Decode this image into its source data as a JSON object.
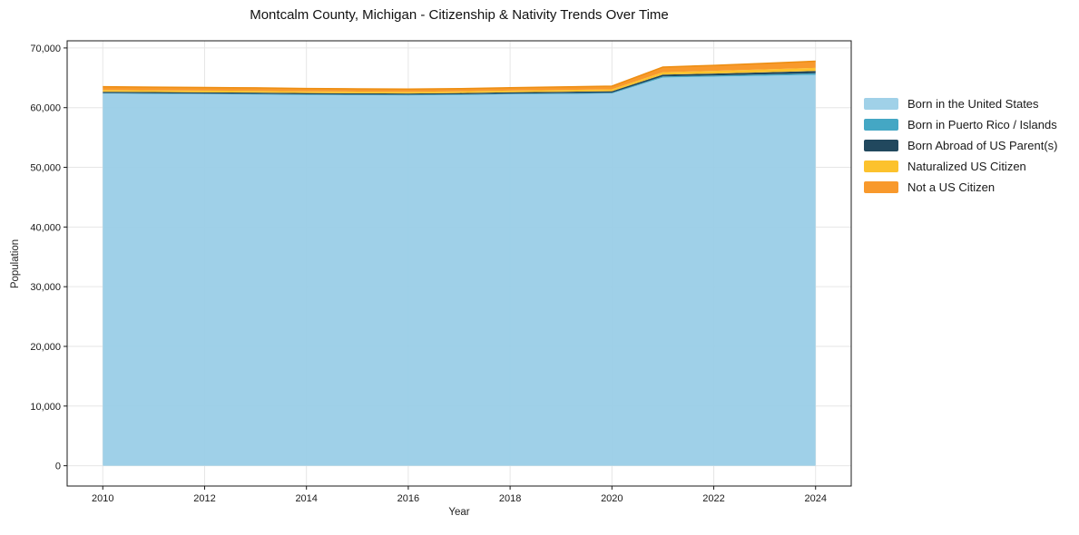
{
  "figure": {
    "background": "#ffffff",
    "spine_color": "#1a1a1a",
    "grid_color": "#e6e6e6",
    "tick_label_color": "#1a1a1a",
    "top_edge_color": "#ed8e12"
  },
  "chart_data": {
    "type": "area",
    "stacked": true,
    "title": "Montcalm County, Michigan - Citizenship & Nativity Trends Over Time",
    "xlabel": "Year",
    "ylabel": "Population",
    "x": [
      2010,
      2011,
      2012,
      2013,
      2014,
      2015,
      2016,
      2017,
      2018,
      2019,
      2020,
      2021,
      2022,
      2023,
      2024
    ],
    "series": [
      {
        "name": "Born in the United States",
        "color": "#98cce6",
        "legend_color": "#a0d1e8",
        "values": [
          62350,
          62300,
          62250,
          62200,
          62120,
          62080,
          62060,
          62120,
          62230,
          62300,
          62380,
          65050,
          65200,
          65350,
          65500
        ]
      },
      {
        "name": "Born in Puerto Rico / Islands",
        "color": "#44a7c4",
        "legend_color": "#44a7c4",
        "values": [
          100,
          100,
          100,
          105,
          110,
          110,
          110,
          115,
          120,
          125,
          130,
          180,
          200,
          230,
          260
        ]
      },
      {
        "name": "Born Abroad of US Parent(s)",
        "color": "#21485e",
        "legend_color": "#21485e",
        "values": [
          210,
          210,
          210,
          215,
          220,
          215,
          210,
          210,
          220,
          230,
          240,
          300,
          320,
          350,
          380
        ]
      },
      {
        "name": "Naturalized US Citizen",
        "color": "#fcc22d",
        "legend_color": "#fcc22d",
        "values": [
          300,
          295,
          295,
          290,
          285,
          280,
          280,
          285,
          295,
          305,
          320,
          420,
          450,
          480,
          520
        ]
      },
      {
        "name": "Not a US Citizen",
        "color": "#f8992c",
        "legend_color": "#f8992c",
        "values": [
          550,
          535,
          520,
          500,
          480,
          460,
          450,
          455,
          475,
          500,
          530,
          850,
          920,
          1000,
          1120
        ]
      }
    ],
    "x_ticks": [
      2010,
      2012,
      2014,
      2016,
      2018,
      2020,
      2022,
      2024
    ],
    "x_tick_labels": [
      "2010",
      "2012",
      "2014",
      "2016",
      "2018",
      "2020",
      "2022",
      "2024"
    ],
    "y_ticks": [
      0,
      10000,
      20000,
      30000,
      40000,
      50000,
      60000,
      70000
    ],
    "y_tick_labels": [
      "0",
      "10,000",
      "20,000",
      "30,000",
      "40,000",
      "50,000",
      "60,000",
      "70,000"
    ],
    "xlim": [
      2009.3,
      2024.7
    ],
    "ylim": [
      -3400,
      71200
    ],
    "grid": true,
    "legend_position": "right-outside"
  }
}
